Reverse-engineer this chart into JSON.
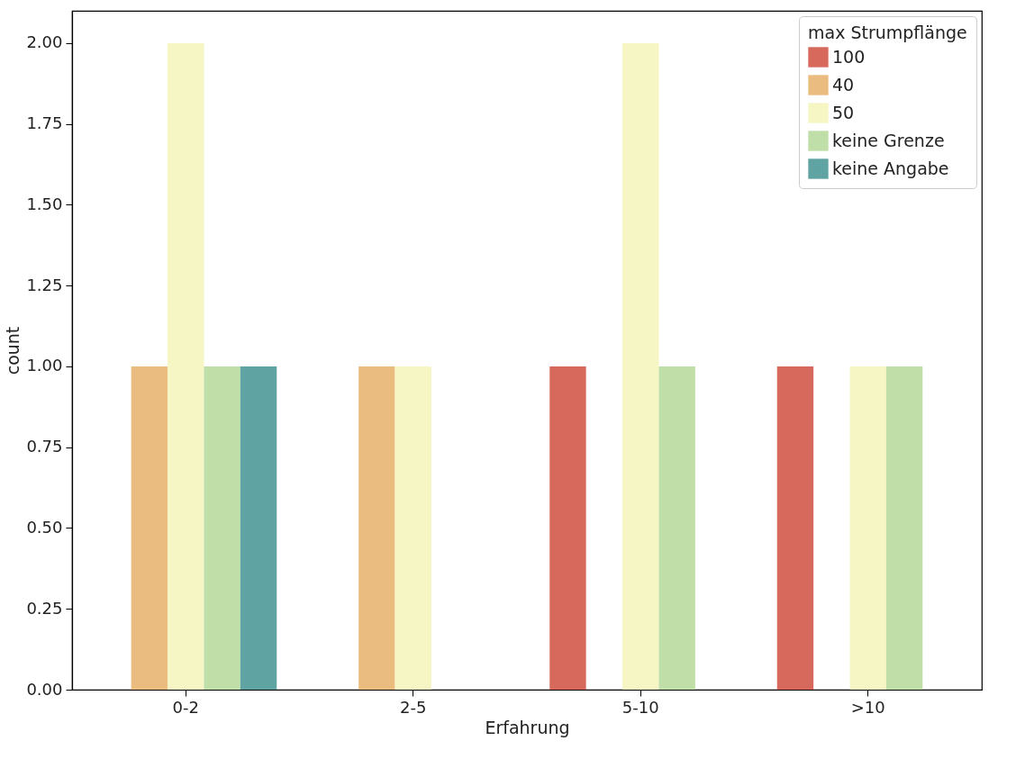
{
  "chart_data": {
    "type": "bar",
    "xlabel": "Erfahrung",
    "ylabel": "count",
    "legend_title": "max Strumpflänge",
    "legend": "top right",
    "grid": false,
    "categories": [
      "0-2",
      "2-5",
      "5-10",
      ">10"
    ],
    "ylim": [
      0,
      2.1
    ],
    "yticks": [
      {
        "value": 0,
        "label": "0.00"
      },
      {
        "value": 0.25,
        "label": "0.25"
      },
      {
        "value": 0.5,
        "label": "0.50"
      },
      {
        "value": 0.75,
        "label": "0.75"
      },
      {
        "value": 1,
        "label": "1.00"
      },
      {
        "value": 1.25,
        "label": "1.25"
      },
      {
        "value": 1.5,
        "label": "1.50"
      },
      {
        "value": 1.75,
        "label": "1.75"
      },
      {
        "value": 2,
        "label": "2.00"
      }
    ],
    "series": [
      {
        "name": "100",
        "color": "#d6695b",
        "values": [
          null,
          null,
          1,
          1
        ]
      },
      {
        "name": "40",
        "color": "#ebbc7f",
        "values": [
          1,
          1,
          null,
          null
        ]
      },
      {
        "name": "50",
        "color": "#f6f5c4",
        "values": [
          2,
          1,
          2,
          1
        ]
      },
      {
        "name": "keine Grenze",
        "color": "#c0dea8",
        "values": [
          1,
          null,
          1,
          1
        ]
      },
      {
        "name": "keine Angabe",
        "color": "#5fa4a3",
        "values": [
          1,
          null,
          null,
          null
        ]
      }
    ]
  }
}
